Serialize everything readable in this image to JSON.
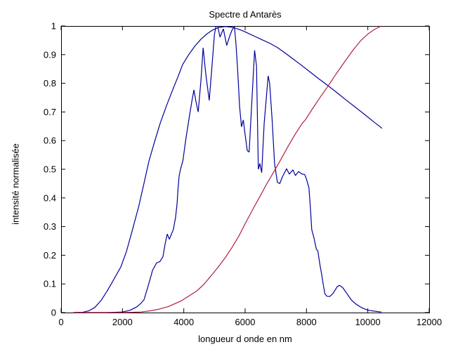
{
  "chart_data": {
    "type": "line",
    "title": "Spectre d Antarès",
    "xlabel": "longueur d onde en nm",
    "ylabel": "intensité normalisée",
    "xlim": [
      0,
      12000
    ],
    "ylim": [
      0,
      1
    ],
    "grid": false,
    "legend_position": "none",
    "background": "#ffffff",
    "axis_color": "#000000",
    "xticks": {
      "values": [
        0,
        2000,
        4000,
        6000,
        8000,
        10000,
        12000
      ],
      "labels": [
        "0",
        "2000",
        "4000",
        "6000",
        "8000",
        "10000",
        "12000"
      ]
    },
    "yticks": {
      "values": [
        0,
        0.1,
        0.2,
        0.3,
        0.4,
        0.5,
        0.6,
        0.7,
        0.8,
        0.9,
        1
      ],
      "labels": [
        "0",
        "0.1",
        "0.2",
        "0.3",
        "0.4",
        "0.5",
        "0.6",
        "0.7",
        "0.8",
        "0.9",
        "1"
      ]
    },
    "series": [
      {
        "name": "blue-smooth-envelope",
        "color": "#00009b",
        "points": [
          [
            400,
            0
          ],
          [
            700,
            0.001
          ],
          [
            900,
            0.006
          ],
          [
            1100,
            0.018
          ],
          [
            1300,
            0.042
          ],
          [
            1500,
            0.075
          ],
          [
            1700,
            0.112
          ],
          [
            1950,
            0.16
          ],
          [
            2130,
            0.213
          ],
          [
            2330,
            0.29
          ],
          [
            2530,
            0.37
          ],
          [
            2700,
            0.45
          ],
          [
            2860,
            0.527
          ],
          [
            3030,
            0.59
          ],
          [
            3230,
            0.66
          ],
          [
            3430,
            0.72
          ],
          [
            3630,
            0.775
          ],
          [
            3830,
            0.828
          ],
          [
            3960,
            0.865
          ],
          [
            4160,
            0.9
          ],
          [
            4360,
            0.93
          ],
          [
            4560,
            0.954
          ],
          [
            4760,
            0.973
          ],
          [
            4960,
            0.987
          ],
          [
            5150,
            0.995
          ],
          [
            5350,
            0.998
          ],
          [
            5550,
            0.996
          ],
          [
            5750,
            0.99
          ],
          [
            5950,
            0.982
          ],
          [
            6150,
            0.972
          ],
          [
            6350,
            0.962
          ],
          [
            6550,
            0.952
          ],
          [
            6800,
            0.94
          ],
          [
            7050,
            0.925
          ],
          [
            7300,
            0.906
          ],
          [
            7550,
            0.886
          ],
          [
            7800,
            0.866
          ],
          [
            8100,
            0.841
          ],
          [
            8400,
            0.816
          ],
          [
            8700,
            0.792
          ],
          [
            9000,
            0.767
          ],
          [
            9300,
            0.741
          ],
          [
            9600,
            0.716
          ],
          [
            9900,
            0.691
          ],
          [
            10200,
            0.665
          ],
          [
            10465,
            0.643
          ]
        ]
      },
      {
        "name": "blue-jagged-spectrum",
        "color": "#00009b",
        "points": [
          [
            400,
            0
          ],
          [
            1500,
            0
          ],
          [
            2000,
            0.002
          ],
          [
            2250,
            0.008
          ],
          [
            2470,
            0.02
          ],
          [
            2600,
            0.032
          ],
          [
            2700,
            0.044
          ],
          [
            2820,
            0.086
          ],
          [
            2930,
            0.127
          ],
          [
            2980,
            0.147
          ],
          [
            3110,
            0.173
          ],
          [
            3220,
            0.178
          ],
          [
            3320,
            0.195
          ],
          [
            3390,
            0.238
          ],
          [
            3460,
            0.274
          ],
          [
            3530,
            0.256
          ],
          [
            3660,
            0.29
          ],
          [
            3730,
            0.331
          ],
          [
            3780,
            0.38
          ],
          [
            3810,
            0.43
          ],
          [
            3850,
            0.478
          ],
          [
            3900,
            0.503
          ],
          [
            3970,
            0.53
          ],
          [
            4060,
            0.6
          ],
          [
            4160,
            0.67
          ],
          [
            4260,
            0.735
          ],
          [
            4330,
            0.777
          ],
          [
            4400,
            0.735
          ],
          [
            4470,
            0.7
          ],
          [
            4560,
            0.81
          ],
          [
            4630,
            0.924
          ],
          [
            4720,
            0.83
          ],
          [
            4830,
            0.74
          ],
          [
            4920,
            0.86
          ],
          [
            5000,
            0.97
          ],
          [
            5050,
            0.999
          ],
          [
            5110,
            0.998
          ],
          [
            5180,
            0.961
          ],
          [
            5290,
            0.99
          ],
          [
            5400,
            0.932
          ],
          [
            5500,
            0.966
          ],
          [
            5570,
            0.985
          ],
          [
            5650,
            0.999
          ],
          [
            5700,
            0.94
          ],
          [
            5760,
            0.84
          ],
          [
            5820,
            0.72
          ],
          [
            5880,
            0.648
          ],
          [
            5940,
            0.672
          ],
          [
            6000,
            0.62
          ],
          [
            6070,
            0.565
          ],
          [
            6130,
            0.56
          ],
          [
            6210,
            0.72
          ],
          [
            6310,
            0.915
          ],
          [
            6370,
            0.86
          ],
          [
            6430,
            0.5
          ],
          [
            6480,
            0.52
          ],
          [
            6540,
            0.488
          ],
          [
            6620,
            0.66
          ],
          [
            6750,
            0.826
          ],
          [
            6800,
            0.8
          ],
          [
            6880,
            0.674
          ],
          [
            6960,
            0.52
          ],
          [
            7050,
            0.455
          ],
          [
            7130,
            0.45
          ],
          [
            7210,
            0.472
          ],
          [
            7350,
            0.502
          ],
          [
            7440,
            0.483
          ],
          [
            7560,
            0.498
          ],
          [
            7640,
            0.478
          ],
          [
            7740,
            0.492
          ],
          [
            7860,
            0.483
          ],
          [
            7940,
            0.482
          ],
          [
            8000,
            0.466
          ],
          [
            8080,
            0.436
          ],
          [
            8130,
            0.363
          ],
          [
            8170,
            0.29
          ],
          [
            8250,
            0.257
          ],
          [
            8320,
            0.222
          ],
          [
            8370,
            0.215
          ],
          [
            8440,
            0.167
          ],
          [
            8500,
            0.13
          ],
          [
            8550,
            0.095
          ],
          [
            8600,
            0.066
          ],
          [
            8660,
            0.057
          ],
          [
            8760,
            0.056
          ],
          [
            8860,
            0.066
          ],
          [
            9000,
            0.09
          ],
          [
            9080,
            0.095
          ],
          [
            9180,
            0.087
          ],
          [
            9300,
            0.069
          ],
          [
            9460,
            0.044
          ],
          [
            9620,
            0.029
          ],
          [
            9800,
            0.017
          ],
          [
            10000,
            0.008
          ],
          [
            10210,
            0.005
          ],
          [
            10440,
            0.002
          ]
        ]
      },
      {
        "name": "red-rising-curve",
        "color": "#b0203e",
        "points": [
          [
            400,
            0
          ],
          [
            2000,
            0
          ],
          [
            2600,
            0.002
          ],
          [
            2900,
            0.006
          ],
          [
            3200,
            0.012
          ],
          [
            3500,
            0.021
          ],
          [
            3900,
            0.04
          ],
          [
            4200,
            0.06
          ],
          [
            4420,
            0.075
          ],
          [
            4650,
            0.098
          ],
          [
            4880,
            0.127
          ],
          [
            5110,
            0.157
          ],
          [
            5340,
            0.19
          ],
          [
            5570,
            0.227
          ],
          [
            5800,
            0.268
          ],
          [
            6020,
            0.314
          ],
          [
            6250,
            0.36
          ],
          [
            6480,
            0.405
          ],
          [
            6710,
            0.45
          ],
          [
            6940,
            0.492
          ],
          [
            7170,
            0.535
          ],
          [
            7400,
            0.58
          ],
          [
            7630,
            0.622
          ],
          [
            7860,
            0.66
          ],
          [
            7980,
            0.675
          ],
          [
            8200,
            0.712
          ],
          [
            8450,
            0.752
          ],
          [
            8700,
            0.79
          ],
          [
            9000,
            0.838
          ],
          [
            9250,
            0.876
          ],
          [
            9500,
            0.913
          ],
          [
            9760,
            0.948
          ],
          [
            10000,
            0.972
          ],
          [
            10230,
            0.989
          ],
          [
            10442,
            1.0
          ]
        ]
      }
    ]
  }
}
